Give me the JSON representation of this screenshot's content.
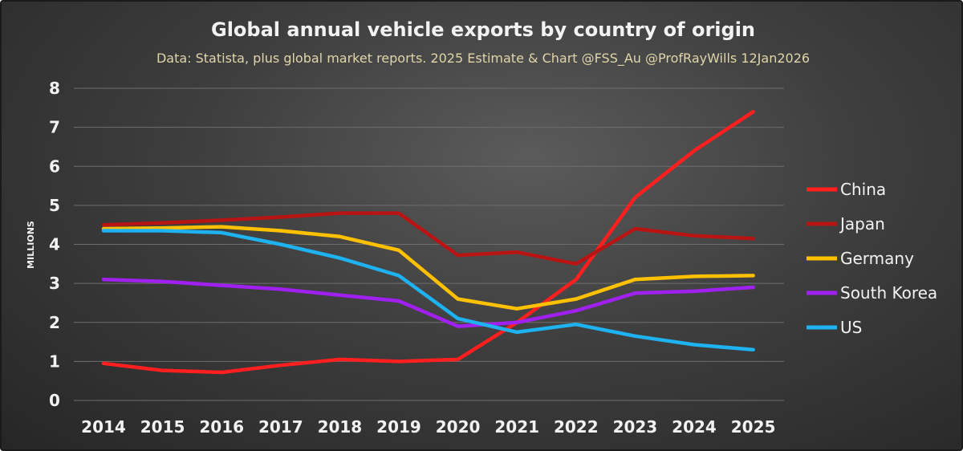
{
  "chart_data": {
    "type": "line",
    "title": "Global annual vehicle exports by country of origin",
    "subtitle": "Data: Statista, plus global market reports.  2025 Estimate & Chart @FSS_Au @ProfRayWills 12Jan2026",
    "xlabel": "",
    "ylabel": "MILLIONS",
    "ylim": [
      0,
      8
    ],
    "yticks": [
      "0",
      "1",
      "2",
      "3",
      "4",
      "5",
      "6",
      "7",
      "8"
    ],
    "grid": true,
    "legend_position": "right",
    "categories": [
      "2014",
      "2015",
      "2016",
      "2017",
      "2018",
      "2019",
      "2020",
      "2021",
      "2022",
      "2023",
      "2024",
      "2025"
    ],
    "series": [
      {
        "name": "China",
        "color": "#ff1f1f",
        "values": [
          0.95,
          0.77,
          0.72,
          0.9,
          1.05,
          1.0,
          1.05,
          2.0,
          3.1,
          5.2,
          6.4,
          7.4
        ]
      },
      {
        "name": "Japan",
        "color": "#b81414",
        "values": [
          4.5,
          4.55,
          4.62,
          4.7,
          4.8,
          4.8,
          3.72,
          3.8,
          3.5,
          4.4,
          4.22,
          4.15
        ]
      },
      {
        "name": "Germany",
        "color": "#ffc000",
        "values": [
          4.4,
          4.42,
          4.45,
          4.35,
          4.2,
          3.85,
          2.6,
          2.35,
          2.6,
          3.1,
          3.18,
          3.2
        ]
      },
      {
        "name": "South Korea",
        "color": "#a020f0",
        "values": [
          3.1,
          3.05,
          2.95,
          2.85,
          2.7,
          2.55,
          1.9,
          2.0,
          2.3,
          2.75,
          2.8,
          2.9
        ]
      },
      {
        "name": "US",
        "color": "#1eb2f0",
        "values": [
          4.35,
          4.35,
          4.3,
          4.0,
          3.65,
          3.2,
          2.1,
          1.75,
          1.95,
          1.65,
          1.43,
          1.3
        ]
      }
    ]
  }
}
